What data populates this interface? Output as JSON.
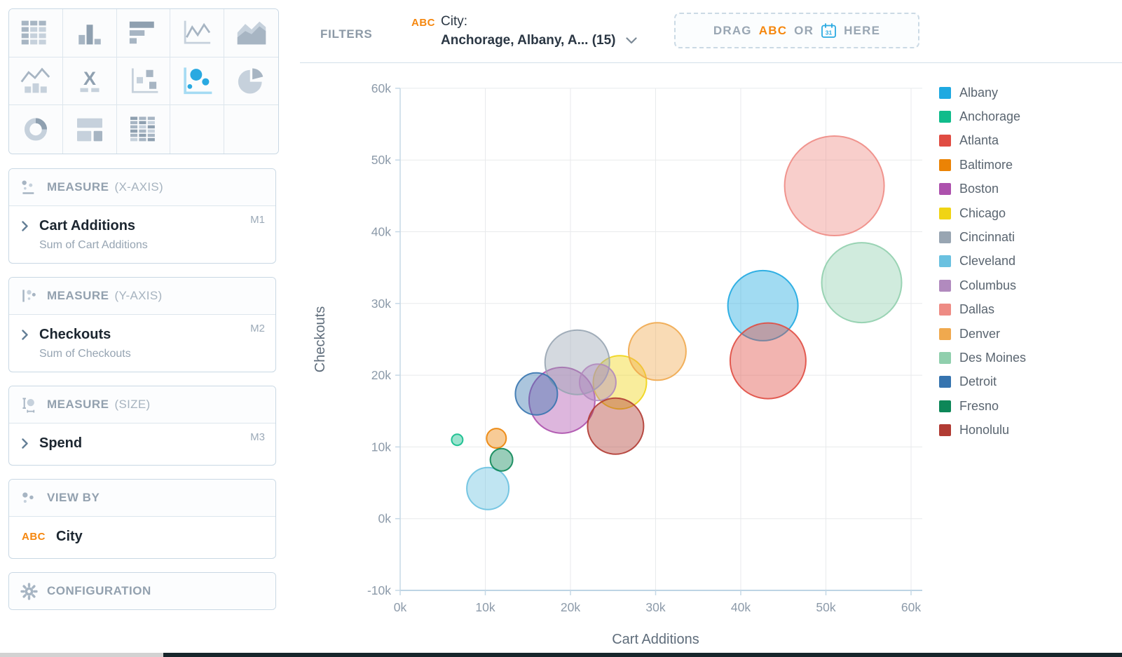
{
  "accent_colors": {
    "selected_chart_icon": "#29A9E1",
    "selected_chart_axis": "#A5DBF3",
    "attribute_badge_orange": "#F5870F",
    "calendar_icon_blue": "#29A9E1"
  },
  "chart_picker": {
    "cells": [
      {
        "icon": "table-icon",
        "selected": false
      },
      {
        "icon": "bar-chart-icon",
        "selected": false
      },
      {
        "icon": "horizontal-bar-chart-icon",
        "selected": false
      },
      {
        "icon": "line-chart-icon",
        "selected": false
      },
      {
        "icon": "area-chart-icon",
        "selected": false
      },
      {
        "icon": "kpi-trend-icon",
        "selected": false
      },
      {
        "icon": "x-bars-icon",
        "selected": false
      },
      {
        "icon": "scatter-plot-icon",
        "selected": false
      },
      {
        "icon": "bubble-chart-icon",
        "selected": true
      },
      {
        "icon": "pie-chart-icon",
        "selected": false
      },
      {
        "icon": "donut-chart-icon",
        "selected": false
      },
      {
        "icon": "layout-icon",
        "selected": false
      },
      {
        "icon": "pivot-table-icon",
        "selected": false
      },
      {
        "icon": null,
        "selected": false
      },
      {
        "icon": null,
        "selected": false
      }
    ]
  },
  "filters": {
    "label": "FILTERS",
    "type_badge": "ABC",
    "field_label": "City:",
    "value": "Anchorage, Albany, A... (15)"
  },
  "drop_zone": {
    "drag": "DRAG",
    "abc": "ABC",
    "or": "OR",
    "calendar_day": "31",
    "here": "HERE"
  },
  "panels": [
    {
      "id": "measure-x",
      "icon": "xaxis-measure-icon",
      "title": "MEASURE",
      "qualifier": "(X-AXIS)",
      "items": [
        {
          "label": "Cart Additions",
          "sublabel": "Sum of Cart Additions",
          "badge": "M1"
        }
      ]
    },
    {
      "id": "measure-y",
      "icon": "yaxis-measure-icon",
      "title": "MEASURE",
      "qualifier": "(Y-AXIS)",
      "items": [
        {
          "label": "Checkouts",
          "sublabel": "Sum of Checkouts",
          "badge": "M2"
        }
      ]
    },
    {
      "id": "measure-size",
      "icon": "size-measure-icon",
      "title": "MEASURE",
      "qualifier": "(SIZE)",
      "items": [
        {
          "label": "Spend",
          "badge": "M3"
        }
      ]
    },
    {
      "id": "view-by",
      "icon": "viewby-dots-icon",
      "title": "VIEW BY",
      "qualifier": "",
      "items": [
        {
          "label": "City",
          "type_badge": "ABC"
        }
      ]
    },
    {
      "id": "configuration",
      "icon": "gear-icon",
      "title": "CONFIGURATION",
      "qualifier": "",
      "items": []
    }
  ],
  "chart_data": {
    "type": "bubble",
    "xlabel": "Cart Additions",
    "ylabel": "Checkouts",
    "xlim": [
      0,
      60000
    ],
    "ylim": [
      -10000,
      60000
    ],
    "x_tick_labels": [
      "0k",
      "10k",
      "20k",
      "30k",
      "40k",
      "50k",
      "60k"
    ],
    "y_tick_labels": [
      "-10k",
      "0k",
      "10k",
      "20k",
      "30k",
      "40k",
      "50k",
      "60k"
    ],
    "grid": true,
    "legend_position": "right",
    "size_measure": "Spend (M3)",
    "points": [
      {
        "city": "Albany",
        "cart_additions": 42600,
        "checkouts": 29700,
        "color": "#1FA9E1",
        "radius_px": 50
      },
      {
        "city": "Anchorage",
        "cart_additions": 6700,
        "checkouts": 11000,
        "color": "#10BC8B",
        "radius_px": 8
      },
      {
        "city": "Atlanta",
        "cart_additions": 43200,
        "checkouts": 22000,
        "color": "#E04C42",
        "radius_px": 54
      },
      {
        "city": "Baltimore",
        "cart_additions": 11300,
        "checkouts": 11200,
        "color": "#EB8305",
        "radius_px": 14
      },
      {
        "city": "Boston",
        "cart_additions": 19000,
        "checkouts": 16500,
        "color": "#AD51AD",
        "radius_px": 47
      },
      {
        "city": "Chicago",
        "cart_additions": 25800,
        "checkouts": 19000,
        "color": "#F0D414",
        "radius_px": 38
      },
      {
        "city": "Cincinnati",
        "cart_additions": 20800,
        "checkouts": 21800,
        "color": "#98A5B2",
        "radius_px": 46
      },
      {
        "city": "Cleveland",
        "cart_additions": 10300,
        "checkouts": 4200,
        "color": "#6AC1E0",
        "radius_px": 30
      },
      {
        "city": "Columbus",
        "cart_additions": 23200,
        "checkouts": 19000,
        "color": "#B18ABE",
        "radius_px": 26
      },
      {
        "city": "Dallas",
        "cart_additions": 51000,
        "checkouts": 46400,
        "color": "#EE8B84",
        "radius_px": 71
      },
      {
        "city": "Denver",
        "cart_additions": 30200,
        "checkouts": 23300,
        "color": "#F0A94E",
        "radius_px": 41
      },
      {
        "city": "Des Moines",
        "cart_additions": 54200,
        "checkouts": 32900,
        "color": "#90CFAD",
        "radius_px": 57
      },
      {
        "city": "Detroit",
        "cart_additions": 16000,
        "checkouts": 17400,
        "color": "#3674AF",
        "radius_px": 30
      },
      {
        "city": "Fresno",
        "cart_additions": 11900,
        "checkouts": 8200,
        "color": "#0D8758",
        "radius_px": 16
      },
      {
        "city": "Honolulu",
        "cart_additions": 25300,
        "checkouts": 12900,
        "color": "#B13B33",
        "radius_px": 40
      }
    ]
  }
}
